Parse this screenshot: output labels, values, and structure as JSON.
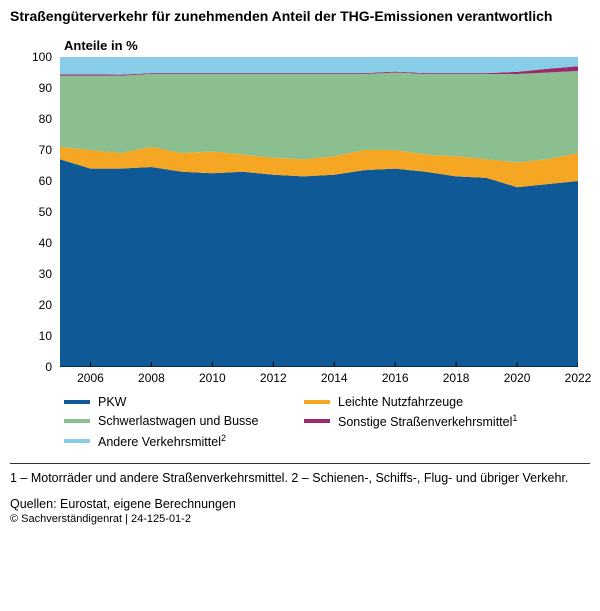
{
  "title": "Straßengüterverkehr für zunehmenden Anteil der THG-Emissionen verantwortlich",
  "subtitle": "Anteile in %",
  "chart": {
    "type": "area",
    "background_color": "#ffffff",
    "grid_color": "#b0b0b0",
    "ylim": [
      0,
      100
    ],
    "ytick_step": 10,
    "xlim": [
      2005,
      2022
    ],
    "xticks": [
      2006,
      2008,
      2010,
      2012,
      2014,
      2016,
      2018,
      2020,
      2022
    ],
    "title_fontsize": 14,
    "label_fontsize": 12,
    "series": [
      {
        "name": "PKW",
        "color": "#0f5a96",
        "values": [
          67,
          64,
          64,
          64.5,
          63,
          62.5,
          63,
          62,
          61.5,
          62,
          63.5,
          64,
          63,
          61.5,
          61,
          58,
          59,
          60
        ]
      },
      {
        "name": "Leichte Nutzfahrzeuge",
        "color": "#f5a623",
        "values": [
          4,
          6,
          5,
          6.5,
          6,
          7,
          5.5,
          5.5,
          5.5,
          6,
          6.5,
          6,
          5.5,
          6.5,
          6,
          8,
          8,
          9
        ]
      },
      {
        "name": "Schwerlastwagen und Busse",
        "color": "#8bbf8f",
        "values": [
          23,
          24,
          25,
          23.5,
          25.5,
          25,
          26,
          27,
          27.5,
          26.5,
          24.5,
          25,
          26,
          26.5,
          27.5,
          28.5,
          28,
          26.5
        ]
      },
      {
        "name": "Sonstige Straßenverkehrsmittel",
        "color": "#9c2a6b",
        "sup": "1",
        "values": [
          0.4,
          0.4,
          0.3,
          0.3,
          0.3,
          0.3,
          0.3,
          0.3,
          0.3,
          0.3,
          0.3,
          0.3,
          0.3,
          0.3,
          0.3,
          0.7,
          1.2,
          1.5
        ]
      },
      {
        "name": "Andere Verkehrsmittel",
        "color": "#87cde8",
        "sup": "2",
        "values": [
          5.6,
          5.6,
          5.7,
          5.2,
          5.2,
          5.2,
          5.2,
          5.2,
          5.2,
          5.2,
          5.2,
          4.7,
          5.2,
          5.2,
          5.2,
          4.8,
          3.8,
          3
        ]
      }
    ]
  },
  "footnote": "1 – Motorräder und andere Straßenverkehrsmittel.  2 – Schienen-, Schiffs-, Flug- und übriger Verkehr.",
  "sources": "Quellen: Eurostat, eigene Berechnungen",
  "copyright": "© Sachverständigenrat | 24-125-01-2"
}
